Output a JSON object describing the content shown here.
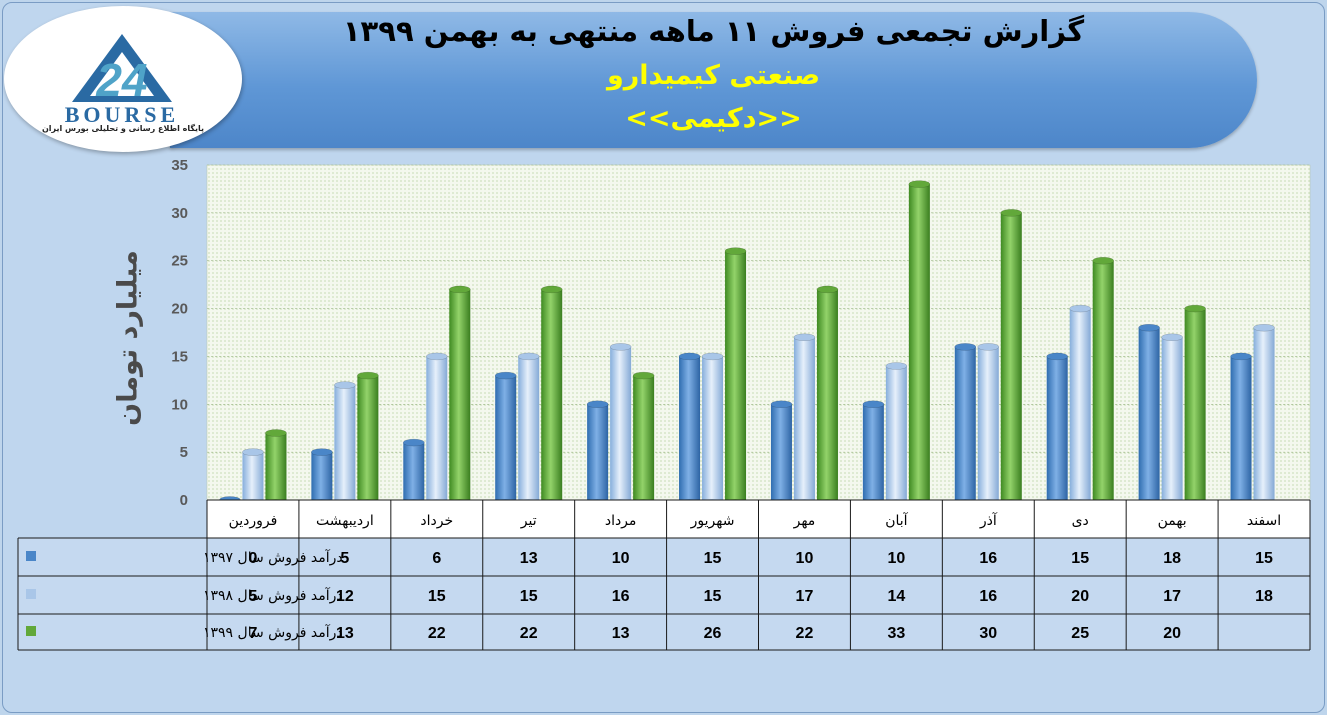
{
  "header": {
    "title": "گزارش تجمعی فروش ۱۱ ماهه منتهی به بهمن ۱۳۹۹",
    "subtitle": "صنعتی کیمیدارو",
    "company_code": "<<دکیمی>>"
  },
  "logo": {
    "number": "24",
    "word": "BOURSE",
    "tagline": "پایگاه اطلاع رسانی و تحلیلی بورس ایران",
    "colors": {
      "primary": "#2a6aa3",
      "accent": "#4fa3c8"
    }
  },
  "chart_data": {
    "type": "bar",
    "ylabel": "میلیارد تومان",
    "ylim": [
      0,
      35
    ],
    "yticks": [
      0,
      5,
      10,
      15,
      20,
      25,
      30,
      35
    ],
    "grid": true,
    "legend": "table-left",
    "categories": [
      "فروردین",
      "اردیبهشت",
      "خرداد",
      "تیر",
      "مرداد",
      "شهریور",
      "مهر",
      "آبان",
      "آذر",
      "دی",
      "بهمن",
      "اسفند"
    ],
    "series": [
      {
        "name": "درآمد فروش سال ۱۳۹۷",
        "color": "#4a86c8",
        "values": [
          0,
          5,
          6,
          13,
          10,
          15,
          10,
          10,
          16,
          15,
          18,
          15
        ]
      },
      {
        "name": "درآمد فروش سال ۱۳۹۸",
        "color": "#a9c6e8",
        "values": [
          5,
          12,
          15,
          15,
          16,
          15,
          17,
          14,
          16,
          20,
          17,
          18
        ]
      },
      {
        "name": "درآمد فروش سال ۱۳۹۹",
        "color": "#62a83a",
        "values": [
          7,
          13,
          22,
          22,
          13,
          26,
          22,
          33,
          30,
          25,
          20,
          null
        ]
      }
    ]
  }
}
